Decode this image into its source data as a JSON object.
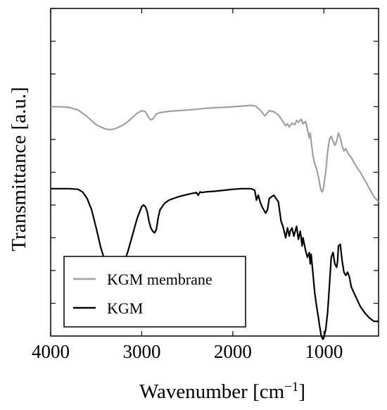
{
  "chart_data": {
    "type": "line",
    "xlabel": "Wavenumber [cm",
    "xlabel_superscript": "−1",
    "xlabel_suffix": "]",
    "ylabel": "Transmittance [a.u.]",
    "xlim": [
      4000,
      400
    ],
    "x_reversed": true,
    "ylim": [
      0,
      10
    ],
    "grid": false,
    "legend_position": "bottom-left",
    "x_ticks": [
      4000,
      3000,
      2000,
      1000
    ],
    "x_tick_labels": [
      "4000",
      "3000",
      "2000",
      "1000"
    ],
    "y_tick_values": [
      1,
      2,
      3,
      4,
      5,
      6,
      7,
      8,
      9,
      10
    ],
    "series": [
      {
        "name": "KGM membrane",
        "color": "#a0a0a0",
        "x": [
          4000,
          3900,
          3800,
          3700,
          3600,
          3500,
          3400,
          3350,
          3300,
          3250,
          3200,
          3150,
          3100,
          3050,
          3000,
          2960,
          2940,
          2920,
          2900,
          2880,
          2860,
          2840,
          2800,
          2700,
          2600,
          2500,
          2400,
          2300,
          2200,
          2100,
          2000,
          1900,
          1800,
          1750,
          1700,
          1650,
          1630,
          1600,
          1550,
          1500,
          1450,
          1420,
          1400,
          1380,
          1350,
          1320,
          1300,
          1280,
          1250,
          1230,
          1200,
          1180,
          1160,
          1150,
          1140,
          1120,
          1100,
          1080,
          1060,
          1040,
          1030,
          1020,
          1010,
          1000,
          980,
          960,
          940,
          920,
          900,
          880,
          860,
          840,
          820,
          800,
          780,
          760,
          740,
          700,
          650,
          600,
          550,
          500,
          450,
          400
        ],
        "y": [
          7.0,
          7.0,
          6.98,
          6.9,
          6.7,
          6.45,
          6.32,
          6.3,
          6.32,
          6.38,
          6.45,
          6.55,
          6.68,
          6.8,
          6.88,
          6.85,
          6.75,
          6.65,
          6.6,
          6.62,
          6.7,
          6.78,
          6.82,
          6.86,
          6.88,
          6.9,
          6.92,
          6.95,
          6.97,
          6.98,
          7.0,
          7.02,
          7.04,
          7.02,
          6.9,
          6.72,
          6.78,
          6.88,
          6.85,
          6.75,
          6.55,
          6.42,
          6.48,
          6.38,
          6.5,
          6.45,
          6.58,
          6.52,
          6.62,
          6.48,
          6.55,
          6.3,
          6.05,
          6.2,
          5.95,
          5.5,
          5.25,
          5.1,
          4.85,
          4.55,
          4.45,
          4.4,
          4.45,
          4.6,
          5.0,
          5.6,
          6.0,
          6.1,
          5.95,
          5.82,
          5.95,
          6.2,
          6.05,
          5.8,
          5.65,
          5.72,
          5.6,
          5.45,
          5.2,
          5.0,
          4.75,
          4.5,
          4.25,
          4.1
        ]
      },
      {
        "name": "KGM",
        "color": "#000000",
        "x": [
          4000,
          3900,
          3800,
          3700,
          3650,
          3600,
          3550,
          3500,
          3450,
          3400,
          3350,
          3300,
          3250,
          3200,
          3150,
          3100,
          3050,
          3000,
          2980,
          2960,
          2940,
          2920,
          2900,
          2880,
          2860,
          2840,
          2820,
          2800,
          2750,
          2700,
          2600,
          2500,
          2400,
          2380,
          2360,
          2340,
          2300,
          2200,
          2100,
          2000,
          1900,
          1800,
          1760,
          1740,
          1720,
          1700,
          1680,
          1660,
          1640,
          1620,
          1600,
          1550,
          1500,
          1470,
          1450,
          1420,
          1400,
          1380,
          1370,
          1350,
          1330,
          1300,
          1280,
          1260,
          1250,
          1240,
          1230,
          1200,
          1180,
          1160,
          1150,
          1140,
          1120,
          1100,
          1080,
          1060,
          1050,
          1040,
          1030,
          1020,
          1010,
          1000,
          980,
          960,
          940,
          920,
          900,
          880,
          860,
          850,
          840,
          820,
          800,
          780,
          760,
          740,
          720,
          700,
          650,
          600,
          550,
          500,
          450,
          400
        ],
        "y": [
          4.5,
          4.5,
          4.5,
          4.48,
          4.4,
          4.2,
          3.85,
          3.3,
          2.7,
          2.25,
          1.95,
          1.88,
          1.95,
          2.2,
          2.6,
          3.1,
          3.6,
          3.95,
          4.0,
          3.95,
          3.8,
          3.5,
          3.3,
          3.2,
          3.15,
          3.25,
          3.6,
          3.85,
          4.05,
          4.15,
          4.25,
          4.32,
          4.38,
          4.3,
          4.4,
          4.38,
          4.4,
          4.42,
          4.45,
          4.48,
          4.5,
          4.5,
          4.45,
          4.15,
          4.3,
          4.1,
          3.95,
          3.85,
          3.75,
          3.85,
          4.2,
          4.3,
          4.1,
          3.5,
          3.35,
          3.0,
          3.3,
          3.05,
          3.2,
          3.3,
          3.05,
          3.35,
          2.95,
          3.2,
          3.0,
          2.75,
          3.0,
          2.6,
          2.4,
          2.55,
          2.2,
          2.5,
          1.9,
          1.3,
          0.9,
          0.55,
          0.35,
          0.18,
          0.02,
          -0.05,
          -0.1,
          -0.05,
          0.2,
          0.7,
          1.5,
          2.4,
          2.55,
          2.2,
          2.1,
          2.3,
          2.75,
          2.8,
          2.3,
          1.95,
          1.85,
          1.95,
          1.8,
          1.5,
          1.2,
          0.9,
          0.7,
          0.55,
          0.45,
          0.45
        ]
      }
    ]
  }
}
